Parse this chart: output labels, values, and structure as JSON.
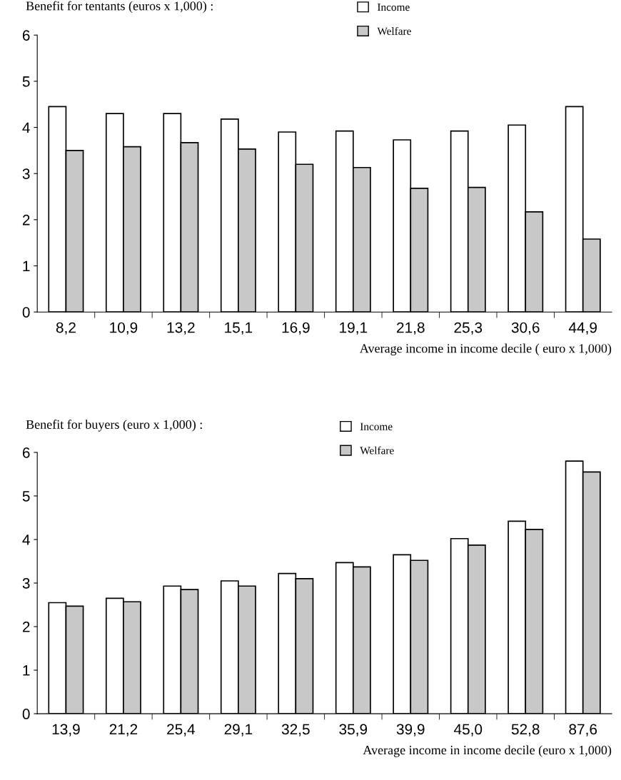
{
  "chart_data": [
    {
      "type": "bar",
      "title": "Benefit for tentants (euros x 1,000) :",
      "xlabel": "Average income in income decile ( euro x 1,000)",
      "categories": [
        "8,2",
        "10,9",
        "13,2",
        "15,1",
        "16,9",
        "19,1",
        "21,8",
        "25,3",
        "30,6",
        "44,9"
      ],
      "series": [
        {
          "name": "Income",
          "color": "#ffffff",
          "values": [
            4.45,
            4.3,
            4.3,
            4.18,
            3.9,
            3.92,
            3.73,
            3.92,
            4.05,
            4.45
          ]
        },
        {
          "name": "Welfare",
          "color": "#c8c8c8",
          "values": [
            3.5,
            3.58,
            3.67,
            3.53,
            3.2,
            3.13,
            2.68,
            2.7,
            2.17,
            1.58
          ]
        }
      ],
      "ylim": [
        0,
        6
      ],
      "yticks": [
        0,
        1,
        2,
        3,
        4,
        5,
        6
      ],
      "grid": false,
      "legend": "top"
    },
    {
      "type": "bar",
      "title": "Benefit for buyers (euro x 1,000) :",
      "xlabel": "Average income in income decile (euro x 1,000)",
      "categories": [
        "13,9",
        "21,2",
        "25,4",
        "29,1",
        "32,5",
        "35,9",
        "39,9",
        "45,0",
        "52,8",
        "87,6"
      ],
      "series": [
        {
          "name": "Income",
          "color": "#ffffff",
          "values": [
            2.55,
            2.65,
            2.93,
            3.05,
            3.22,
            3.47,
            3.65,
            4.02,
            4.42,
            5.8
          ]
        },
        {
          "name": "Welfare",
          "color": "#c8c8c8",
          "values": [
            2.47,
            2.57,
            2.85,
            2.93,
            3.1,
            3.37,
            3.52,
            3.87,
            4.23,
            5.55
          ]
        }
      ],
      "ylim": [
        0,
        6
      ],
      "yticks": [
        0,
        1,
        2,
        3,
        4,
        5,
        6
      ],
      "grid": false,
      "legend": "top"
    }
  ]
}
